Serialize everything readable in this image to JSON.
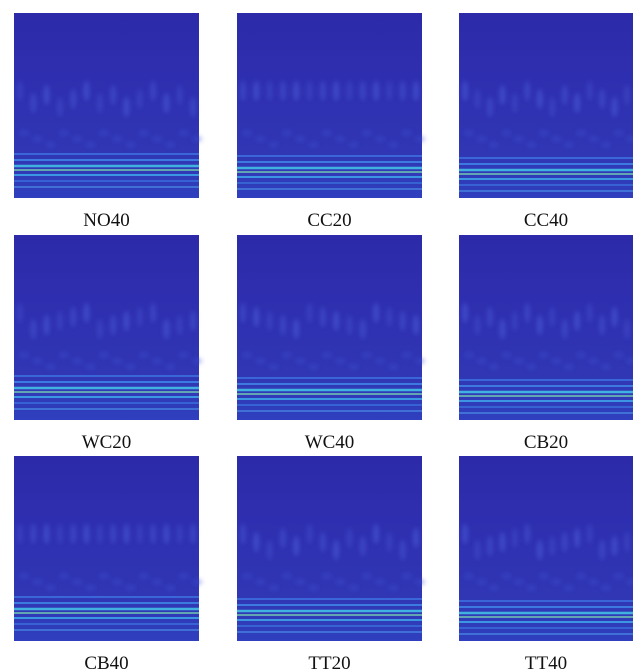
{
  "panels": [
    {
      "label": "NO40"
    },
    {
      "label": "CC20"
    },
    {
      "label": "CC40"
    },
    {
      "label": "WC20"
    },
    {
      "label": "WC40"
    },
    {
      "label": "CB20"
    },
    {
      "label": "CB40"
    },
    {
      "label": "TT20"
    },
    {
      "label": "TT40"
    }
  ]
}
